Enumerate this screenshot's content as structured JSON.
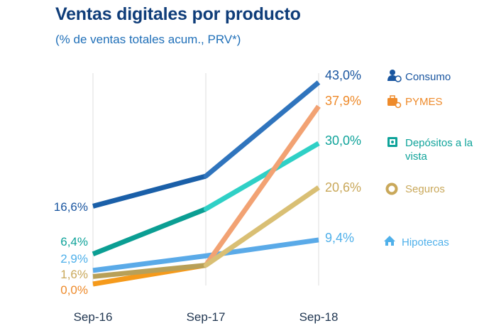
{
  "chart_data": {
    "type": "line",
    "title": "Ventas digitales por producto",
    "subtitle": "(% de ventas totales acum., PRV*)",
    "categories": [
      "Sep-16",
      "Sep-17",
      "Sep-18"
    ],
    "ylim": [
      0,
      45
    ],
    "grid": "vertical",
    "xlabel": "",
    "ylabel": "",
    "series": [
      {
        "key": "hipotecas",
        "name": "Hipotecas",
        "values": [
          2.9,
          6.0,
          9.4
        ],
        "start_label": "2,9%",
        "end_label": "9,4%",
        "color": "#5aaae8",
        "label_color": "#4fb0ea",
        "icon": "house-icon"
      },
      {
        "key": "pymes",
        "name": "PYMES",
        "values": [
          0.0,
          4.0,
          37.9
        ],
        "start_label": "0,0%",
        "end_label": "37,9%",
        "color": "#f59a1b",
        "line_color": "#f2a273",
        "label_color": "#ee8a2a",
        "icon": "briefcase-icon"
      },
      {
        "key": "seguros",
        "name": "Seguros",
        "values": [
          1.6,
          4.0,
          20.6
        ],
        "start_label": "1,6%",
        "end_label": "20,6%",
        "color": "#b8a058",
        "line_color": "#d9bf74",
        "label_color": "#c9a85a",
        "icon": "lifebuoy-icon"
      },
      {
        "key": "depositos",
        "name": "Depósitos a la vista",
        "name_lines": [
          "Depósitos a la",
          "vista"
        ],
        "values": [
          6.4,
          16.0,
          30.0
        ],
        "start_label": "6,4%",
        "end_label": "30,0%",
        "color": "#0b9e93",
        "line_color": "#2fd0c6",
        "label_color": "#0fa39a",
        "icon": "safe-icon"
      },
      {
        "key": "consumo",
        "name": "Consumo",
        "values": [
          16.6,
          23.0,
          43.0
        ],
        "start_label": "16,6%",
        "end_label": "43,0%",
        "color": "#1a5fa8",
        "line_color": "#2f74bd",
        "label_color": "#1a56a0",
        "icon": "person-icon"
      }
    ]
  }
}
